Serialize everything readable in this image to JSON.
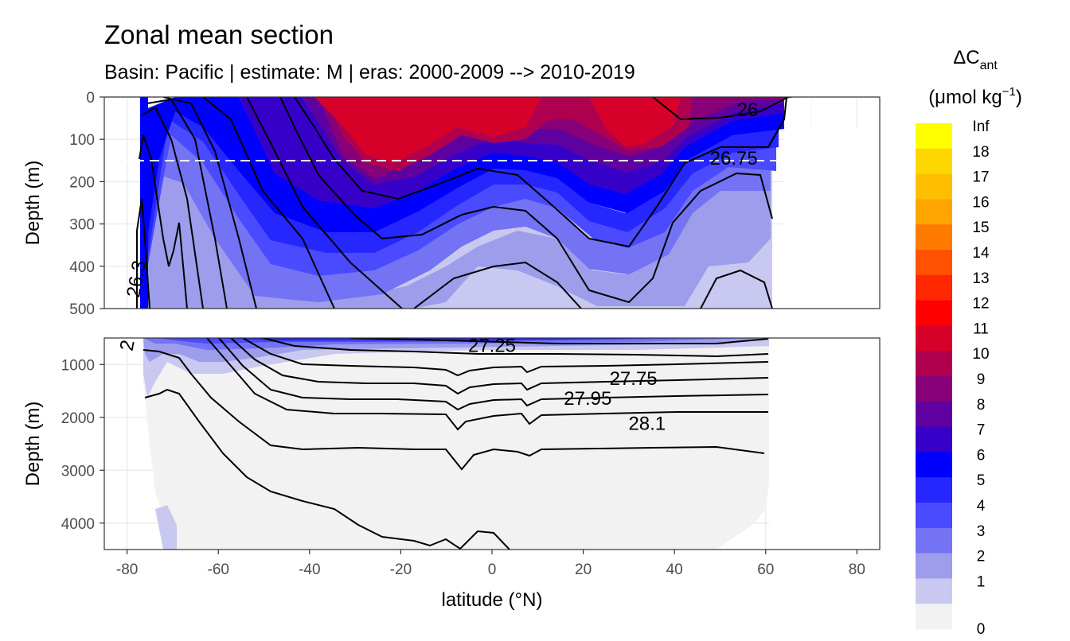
{
  "chart_data": {
    "type": "heatmap",
    "title": "Zonal mean section",
    "subtitle": "Basin: Pacific | estimate: M  | eras: 2000-2009 --> 2010-2019",
    "xlabel": "latitude (°N)",
    "ylabel_top": "Depth (m)",
    "ylabel_bottom": "Depth (m)",
    "xlim": [
      -85,
      85
    ],
    "x_ticks": [
      -80,
      -60,
      -40,
      -20,
      0,
      20,
      40,
      60,
      80
    ],
    "panels": [
      {
        "name": "upper",
        "ylim": [
          0,
          500
        ],
        "y_ticks": [
          0,
          100,
          200,
          300,
          400,
          500
        ],
        "y_tick_labels": [
          "0",
          "100",
          "200",
          "300",
          "400",
          "500"
        ],
        "reference_depth": 150
      },
      {
        "name": "lower",
        "ylim": [
          500,
          4500
        ],
        "y_ticks": [
          1000,
          2000,
          3000,
          4000
        ],
        "y_tick_labels": [
          "1000",
          "2000",
          "3000",
          "4000"
        ]
      }
    ],
    "legend": {
      "title_main": "ΔC",
      "title_sub": "ant",
      "title_units_a": "(μmol kg",
      "title_units_sup": "−1",
      "title_units_b": ")",
      "placement": "right",
      "labels": [
        "Inf",
        "18",
        "17",
        "16",
        "15",
        "14",
        "13",
        "12",
        "11",
        "10",
        "9",
        "8",
        "7",
        "6",
        "5",
        "4",
        "3",
        "2",
        "1",
        "0"
      ],
      "colors": [
        "#ffff00",
        "#ffd700",
        "#ffbf00",
        "#ffa500",
        "#ff7b00",
        "#ff5200",
        "#ff2800",
        "#ff0000",
        "#d70029",
        "#af0050",
        "#870078",
        "#5f00a0",
        "#3700c8",
        "#0000ff",
        "#2626ff",
        "#4a4aff",
        "#7373f4",
        "#9d9dec",
        "#c8c8f0",
        "#f2f2f2"
      ]
    },
    "contour_labels": [
      {
        "text": "26",
        "x": 56,
        "depth": 30
      },
      {
        "text": "26.75",
        "x": 53,
        "depth": 145
      },
      {
        "text": "26.3",
        "x": -78,
        "depth": 430
      },
      {
        "text": "2",
        "x": -80,
        "depth": 640
      },
      {
        "text": "27.25",
        "x": 0,
        "depth": 640
      },
      {
        "text": "27.75",
        "x": 31,
        "depth": 1270
      },
      {
        "text": "27.95",
        "x": 21,
        "depth": 1640
      },
      {
        "text": "28.1",
        "x": 34,
        "depth": 2120
      }
    ]
  }
}
